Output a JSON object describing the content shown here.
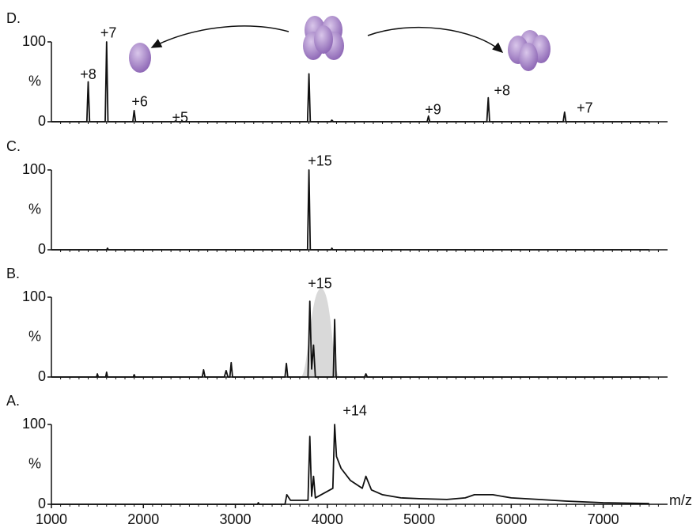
{
  "chart_data": [
    {
      "type": "line",
      "title": "D.",
      "ylabel": "%",
      "xlim": [
        1000,
        7700
      ],
      "ylim": [
        0,
        100
      ],
      "yticks": [
        0,
        100
      ],
      "color": "#111111",
      "x": [
        1000,
        1385,
        1400,
        1415,
        1585,
        1600,
        1615,
        1885,
        1900,
        1915,
        2335,
        2350,
        2365,
        3785,
        3800,
        3815,
        4035,
        4050,
        4065,
        5085,
        5100,
        5115,
        5735,
        5750,
        5765,
        6565,
        6580,
        6595,
        7500
      ],
      "values": [
        0,
        0,
        50,
        0,
        0,
        100,
        0,
        0,
        14,
        0,
        0,
        1,
        0,
        0,
        60,
        0,
        0,
        2,
        0,
        0,
        7,
        0,
        0,
        30,
        0,
        0,
        12,
        0,
        0
      ],
      "annotations": [
        {
          "text": "+8",
          "x": 1400,
          "y": 58
        },
        {
          "text": "+7",
          "x": 1620,
          "y": 110
        },
        {
          "text": "+6",
          "x": 1960,
          "y": 24
        },
        {
          "text": "+5",
          "x": 2400,
          "y": 4
        },
        {
          "text": "+9",
          "x": 5150,
          "y": 14
        },
        {
          "text": "+8",
          "x": 5900,
          "y": 38
        },
        {
          "text": "+7",
          "x": 6800,
          "y": 16
        }
      ]
    },
    {
      "type": "line",
      "title": "C.",
      "ylabel": "%",
      "xlim": [
        1000,
        7700
      ],
      "ylim": [
        0,
        100
      ],
      "yticks": [
        0,
        100
      ],
      "color": "#111111",
      "x": [
        1000,
        1600,
        1610,
        1620,
        3785,
        3800,
        3815,
        4040,
        4050,
        4060,
        7500
      ],
      "values": [
        0,
        0,
        2,
        0,
        0,
        100,
        0,
        0,
        2,
        0,
        0
      ],
      "annotations": [
        {
          "text": "+15",
          "x": 3920,
          "y": 110
        }
      ]
    },
    {
      "type": "line",
      "title": "B.",
      "ylabel": "%",
      "xlim": [
        1000,
        7700
      ],
      "ylim": [
        0,
        100
      ],
      "yticks": [
        0,
        100
      ],
      "color": "#111111",
      "x": [
        1000,
        1490,
        1500,
        1510,
        1590,
        1600,
        1610,
        1890,
        1900,
        1910,
        2640,
        2655,
        2670,
        2880,
        2900,
        2920,
        2940,
        2955,
        2970,
        3540,
        3555,
        3570,
        3790,
        3810,
        3830,
        3850,
        3870,
        4065,
        4080,
        4095,
        4405,
        4420,
        4435,
        7500
      ],
      "values": [
        0,
        0,
        4,
        0,
        0,
        6,
        0,
        0,
        3,
        0,
        0,
        9,
        0,
        0,
        8,
        0,
        0,
        18,
        0,
        0,
        17,
        0,
        0,
        95,
        10,
        40,
        0,
        0,
        72,
        0,
        0,
        4,
        0,
        0
      ],
      "annotations": [
        {
          "text": "+15",
          "x": 3920,
          "y": 116
        }
      ]
    },
    {
      "type": "line",
      "title": "A.",
      "ylabel": "%",
      "xlabel": "m/z",
      "xlim": [
        1000,
        7700
      ],
      "ylim": [
        0,
        100
      ],
      "yticks": [
        0,
        100
      ],
      "xticks": [
        1000,
        2000,
        3000,
        4000,
        5000,
        6000,
        7000
      ],
      "color": "#111111",
      "x": [
        1000,
        3240,
        3250,
        3260,
        3540,
        3560,
        3600,
        3790,
        3810,
        3830,
        3850,
        3870,
        4060,
        4080,
        4100,
        4150,
        4250,
        4380,
        4420,
        4480,
        4600,
        4800,
        5000,
        5300,
        5500,
        5600,
        5800,
        6000,
        6300,
        6600,
        7000,
        7500
      ],
      "values": [
        0,
        0,
        2,
        0,
        0,
        12,
        5,
        5,
        85,
        10,
        35,
        8,
        20,
        100,
        60,
        45,
        30,
        20,
        35,
        18,
        12,
        8,
        7,
        6,
        8,
        12,
        12,
        8,
        6,
        4,
        2,
        1
      ],
      "annotations": [
        {
          "text": "+14",
          "x": 4300,
          "y": 116
        }
      ]
    }
  ]
}
